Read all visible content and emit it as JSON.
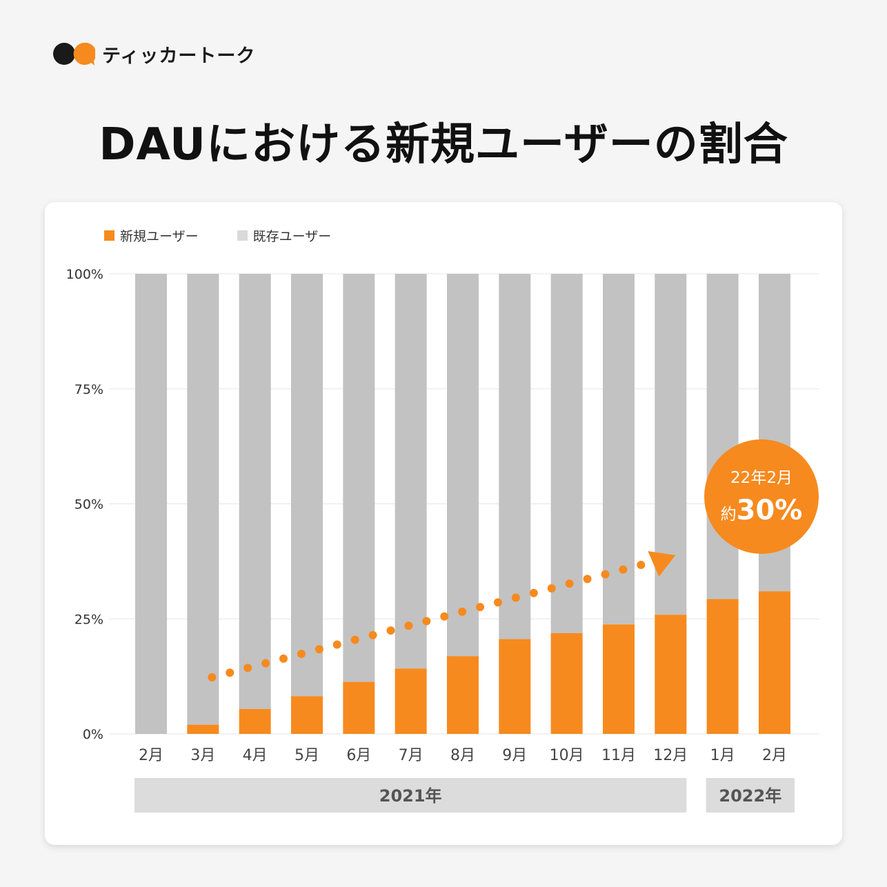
{
  "brand": {
    "name": "ティッカートーク",
    "logo_icon": "speech-bubbles-logo-icon"
  },
  "title": "DAUにおける新規ユーザーの割合",
  "legend": [
    {
      "label": "新規ユーザー",
      "color": "#f68a1e"
    },
    {
      "label": "既存ユーザー",
      "color": "#d9d9d9"
    }
  ],
  "badge": {
    "date": "22年2月",
    "prefix": "約",
    "value": "30%"
  },
  "colors": {
    "accent": "#f68a1e",
    "existing_bar": "#c2c2c2",
    "year_band": "#dcdcdc"
  },
  "chart_data": {
    "type": "bar",
    "stacked": true,
    "categories": [
      "2月",
      "3月",
      "4月",
      "5月",
      "6月",
      "7月",
      "8月",
      "9月",
      "10月",
      "11月",
      "12月",
      "1月",
      "2月"
    ],
    "series": [
      {
        "name": "新規ユーザー",
        "values": [
          0,
          2,
          5.4,
          8.2,
          11.3,
          14.2,
          16.9,
          20.6,
          21.9,
          23.8,
          25.9,
          29.3,
          31
        ]
      },
      {
        "name": "既存ユーザー",
        "values": [
          100,
          98,
          94.6,
          91.8,
          88.7,
          85.8,
          83.1,
          79.4,
          78.1,
          76.2,
          74.1,
          70.7,
          69
        ]
      }
    ],
    "y_ticks": [
      "0%",
      "25%",
      "50%",
      "75%",
      "100%"
    ],
    "ylim": [
      0,
      100
    ],
    "grid": true,
    "legend_position": "top-left",
    "year_groups": [
      {
        "label": "2021年",
        "span": 11
      },
      {
        "label": "2022年",
        "span": 2
      }
    ],
    "trend_arrow": {
      "from_month": "3月",
      "to_month": "12月"
    }
  }
}
